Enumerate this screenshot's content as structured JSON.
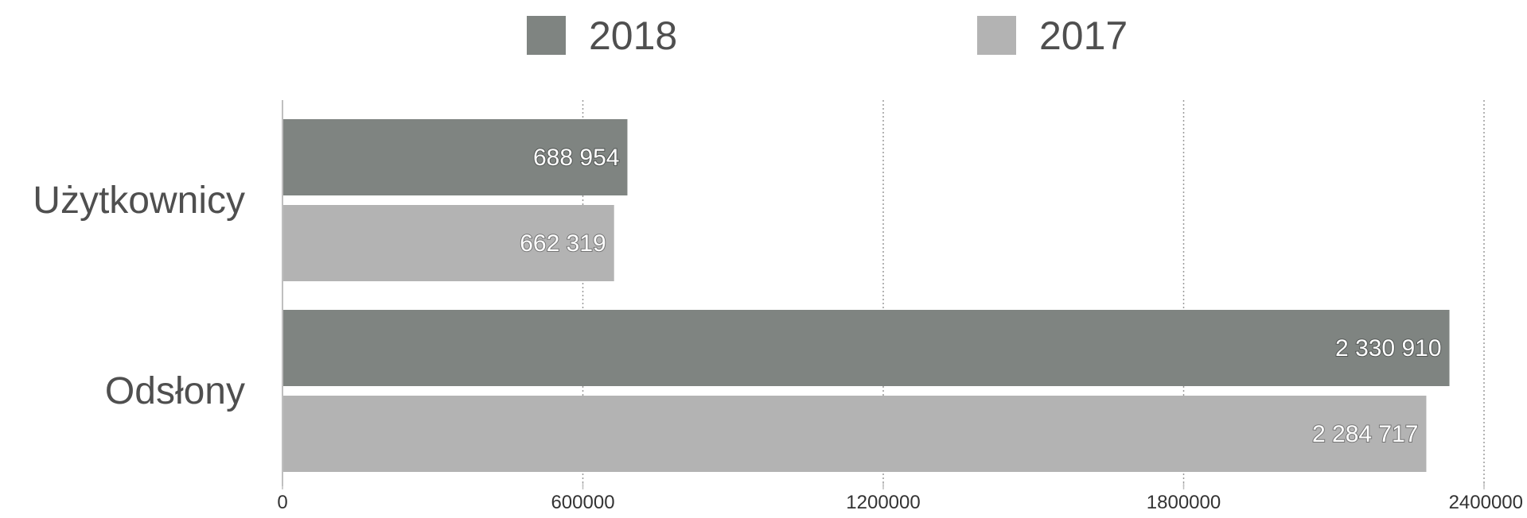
{
  "chart_data": {
    "type": "bar",
    "orientation": "horizontal",
    "categories": [
      "Użytkownicy",
      "Odsłony"
    ],
    "series": [
      {
        "name": "2018",
        "values": [
          688954,
          2330910
        ],
        "value_labels": [
          "688 954",
          "2 330 910"
        ],
        "color": "#7f8481"
      },
      {
        "name": "2017",
        "values": [
          662319,
          2284717
        ],
        "value_labels": [
          "662 319",
          "2 284 717"
        ],
        "color": "#b3b3b3"
      }
    ],
    "xlim": [
      0,
      2400000
    ],
    "x_ticks": [
      0,
      600000,
      1200000,
      1800000,
      2400000
    ],
    "x_tick_labels": [
      "0",
      "600000",
      "1200000",
      "1800000",
      "2400000"
    ],
    "grid": "vertical-dotted",
    "legend": "top-center"
  }
}
